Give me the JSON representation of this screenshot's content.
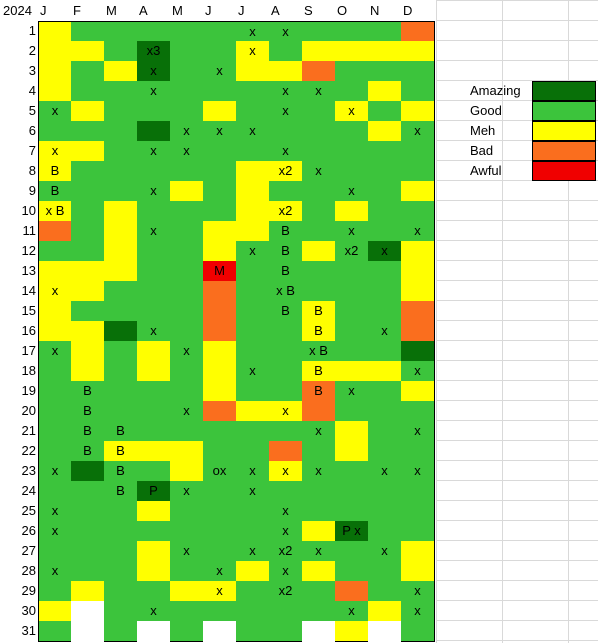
{
  "sheet": {
    "year_label": "2024",
    "months": [
      "J",
      "F",
      "M",
      "A",
      "M",
      "J",
      "J",
      "A",
      "S",
      "O",
      "N",
      "D"
    ],
    "days": [
      "1",
      "2",
      "3",
      "4",
      "5",
      "6",
      "7",
      "8",
      "9",
      "10",
      "11",
      "12",
      "13",
      "14",
      "15",
      "16",
      "17",
      "18",
      "19",
      "20",
      "21",
      "22",
      "23",
      "24",
      "25",
      "26",
      "27",
      "28",
      "29",
      "30",
      "31"
    ],
    "colors": {
      "A": "#087008",
      "G": "#3cc43c",
      "Y": "#ffff00",
      "B": "#fa6e1e",
      "W": "#f00000",
      "E": "#ffffff"
    },
    "rows": [
      [
        "GY",
        "GG",
        "GG",
        "GG",
        "GG",
        "GG",
        "GGx",
        "GGx",
        "GG",
        "GG",
        "GG",
        "GB"
      ],
      [
        "GY",
        "GY",
        "GG",
        "GAx3",
        "GG",
        "GG",
        "GYx",
        "GG",
        "GY",
        "GY",
        "GY",
        "GY"
      ],
      [
        "GY",
        "GG",
        "GY",
        "GAx",
        "GG",
        "GGx",
        "GY",
        "GY",
        "GB",
        "GG",
        "GG",
        "GG"
      ],
      [
        "GY",
        "GG",
        "GG",
        "GGx",
        "GG",
        "GG",
        "GG",
        "GGx",
        "GGx",
        "GG",
        "GY",
        "GG"
      ],
      [
        "GGx",
        "GY",
        "GG",
        "GG",
        "GG",
        "GY",
        "GG",
        "GGx",
        "GG",
        "GYx",
        "GG",
        "GY"
      ],
      [
        "GG",
        "GG",
        "GG",
        "GA",
        "GGx",
        "GGx",
        "GGx",
        "GG",
        "GG",
        "GG",
        "GY",
        "GGx"
      ],
      [
        "GYx",
        "GY",
        "GG",
        "GGx",
        "GGx",
        "GG",
        "GG",
        "GGx",
        "GG",
        "GG",
        "GG",
        "GG"
      ],
      [
        "GYB",
        "GG",
        "GG",
        "GG",
        "GG",
        "GG",
        "GY",
        "GYx2",
        "GGx",
        "GG",
        "GG",
        "GG"
      ],
      [
        "GGB",
        "GG",
        "GG",
        "GGx",
        "GY",
        "GG",
        "GY",
        "GG",
        "GG",
        "GGx",
        "GG",
        "GY"
      ],
      [
        "GYx B",
        "GG",
        "GY",
        "GG",
        "GG",
        "GG",
        "GY",
        "GYx2",
        "GG",
        "GY",
        "GG",
        "GG"
      ],
      [
        "GB",
        "GG",
        "GY",
        "GGx",
        "GG",
        "GY",
        "GY",
        "GGB",
        "GG",
        "GGx",
        "GG",
        "GGx"
      ],
      [
        "GG",
        "GG",
        "GY",
        "GG",
        "GG",
        "GY",
        "GGx",
        "GGB",
        "GY",
        "GGx2",
        "GAx",
        "GY"
      ],
      [
        "GY",
        "GY",
        "GY",
        "GG",
        "GG",
        "GWM",
        "GG",
        "GGB",
        "GG",
        "GG",
        "GG",
        "GY"
      ],
      [
        "GYx",
        "GY",
        "GG",
        "GG",
        "GG",
        "GB",
        "GG",
        "GGx B",
        "GG",
        "GG",
        "GG",
        "GY"
      ],
      [
        "GY",
        "GG",
        "GG",
        "GG",
        "GG",
        "GB",
        "GG",
        "GGB",
        "GYB",
        "GG",
        "GG",
        "GB"
      ],
      [
        "GY",
        "GY",
        "GA",
        "GGx",
        "GG",
        "GB",
        "GG",
        "GG",
        "GYB",
        "GG",
        "GGx",
        "GB"
      ],
      [
        "GGx",
        "GY",
        "GG",
        "GY",
        "GGx",
        "GY",
        "GG",
        "GG",
        "GGx B",
        "GG",
        "GG",
        "GA"
      ],
      [
        "GG",
        "GY",
        "GG",
        "GY",
        "GG",
        "GY",
        "GGx",
        "GG",
        "GYB",
        "GY",
        "GY",
        "GGx"
      ],
      [
        "GG",
        "GGB",
        "GG",
        "GG",
        "GG",
        "GY",
        "GG",
        "GG",
        "GBB",
        "GGx",
        "GG",
        "GY"
      ],
      [
        "GG",
        "GGB",
        "GG",
        "GG",
        "GGx",
        "GB",
        "GY",
        "GYx",
        "GB",
        "GG",
        "GG",
        "GG"
      ],
      [
        "GG",
        "GGB",
        "GGB",
        "GG",
        "GG",
        "GG",
        "GG",
        "GG",
        "GGx",
        "GY",
        "GG",
        "GGx"
      ],
      [
        "GG",
        "GGB",
        "GYB",
        "GY",
        "GY",
        "GG",
        "GG",
        "GB",
        "GG",
        "GY",
        "GG",
        "GG"
      ],
      [
        "GGx",
        "GA",
        "GGB",
        "GG",
        "GY",
        "GGox",
        "GGx",
        "GYx",
        "GGx",
        "GG",
        "GGx",
        "GGx"
      ],
      [
        "GG",
        "GG",
        "GGB",
        "GAP",
        "GGx",
        "GG",
        "GGx",
        "GG",
        "GG",
        "GG",
        "GG",
        "GG"
      ],
      [
        "GGx",
        "GG",
        "GG",
        "GY",
        "GG",
        "GG",
        "GG",
        "GGx",
        "GG",
        "GG",
        "GG",
        "GG"
      ],
      [
        "GGx",
        "GG",
        "GG",
        "GG",
        "GG",
        "GG",
        "GG",
        "GGx",
        "GY",
        "GAP x",
        "GG",
        "GG"
      ],
      [
        "GG",
        "GG",
        "GG",
        "GY",
        "GGx",
        "GG",
        "GGx",
        "GGx2",
        "GGx",
        "GG",
        "GGx",
        "GY"
      ],
      [
        "GGx",
        "GG",
        "GG",
        "GY",
        "GG",
        "GGx",
        "GY",
        "GGx",
        "GY",
        "GG",
        "GG",
        "GY"
      ],
      [
        "GG",
        "GY",
        "GG",
        "GG",
        "GY",
        "GYx",
        "GG",
        "GGx2",
        "GG",
        "GB",
        "GG",
        "GGx"
      ],
      [
        "GY",
        "E",
        "GG",
        "GGx",
        "GG",
        "GG",
        "GG",
        "GG",
        "GG",
        "GGx",
        "GY",
        "GGx"
      ],
      [
        "GG",
        "E",
        "GG",
        "E",
        "GG",
        "E",
        "GG",
        "GG",
        "E",
        "GY",
        "E",
        "GG"
      ]
    ]
  },
  "legend": [
    {
      "label": "Amazing",
      "color": "#087008"
    },
    {
      "label": "Good",
      "color": "#3cc43c"
    },
    {
      "label": "Meh",
      "color": "#ffff00"
    },
    {
      "label": "Bad",
      "color": "#fa6e1e"
    },
    {
      "label": "Awful",
      "color": "#f00000"
    }
  ]
}
